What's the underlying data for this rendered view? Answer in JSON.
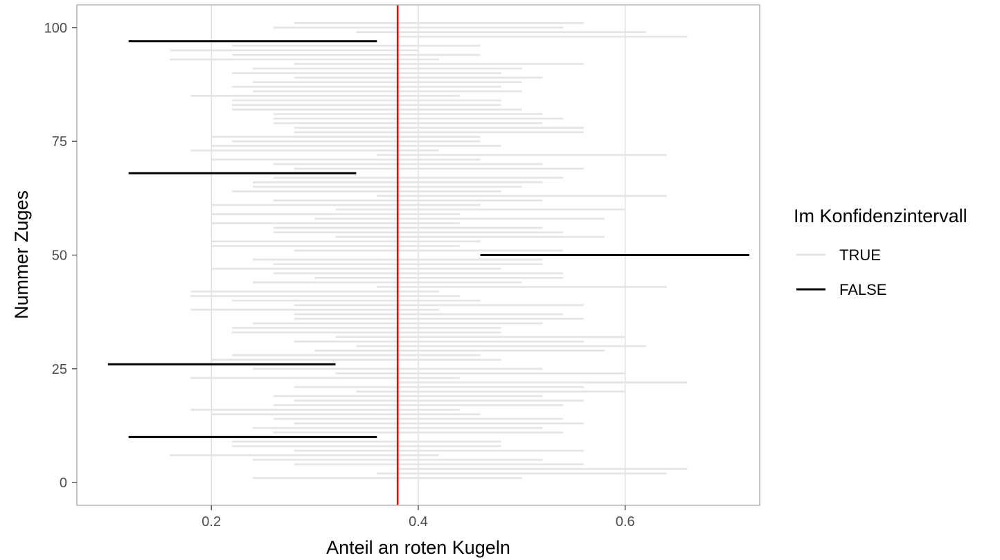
{
  "chart_data": {
    "type": "interval",
    "title": "",
    "xlabel": "Anteil an roten Kugeln",
    "ylabel": "Nummer Zuges",
    "xlim": [
      0.07,
      0.73
    ],
    "ylim": [
      -5,
      105
    ],
    "x_ticks": [
      0.2,
      0.4,
      0.6
    ],
    "x_tick_labels": [
      "0.2",
      "0.4",
      "0.6"
    ],
    "y_ticks": [
      0,
      25,
      50,
      75,
      100
    ],
    "y_tick_labels": [
      "0",
      "25",
      "50",
      "75",
      "100"
    ],
    "grid": true,
    "reference_line": {
      "x": 0.38,
      "color": "#ff0000"
    },
    "legend": {
      "title": "Im Konfidenzintervall",
      "position": "right",
      "entries": [
        {
          "label": "TRUE",
          "color": "#e5e5e5"
        },
        {
          "label": "FALSE",
          "color": "#000000"
        }
      ]
    },
    "intervals": [
      {
        "id": 1,
        "lo": 0.24,
        "hi": 0.5,
        "in_ci": true
      },
      {
        "id": 2,
        "lo": 0.36,
        "hi": 0.64,
        "in_ci": true
      },
      {
        "id": 3,
        "lo": 0.38,
        "hi": 0.66,
        "in_ci": true
      },
      {
        "id": 4,
        "lo": 0.28,
        "hi": 0.56,
        "in_ci": true
      },
      {
        "id": 5,
        "lo": 0.24,
        "hi": 0.52,
        "in_ci": true
      },
      {
        "id": 6,
        "lo": 0.16,
        "hi": 0.42,
        "in_ci": true
      },
      {
        "id": 7,
        "lo": 0.28,
        "hi": 0.56,
        "in_ci": true
      },
      {
        "id": 8,
        "lo": 0.22,
        "hi": 0.48,
        "in_ci": true
      },
      {
        "id": 9,
        "lo": 0.22,
        "hi": 0.48,
        "in_ci": true
      },
      {
        "id": 10,
        "lo": 0.12,
        "hi": 0.36,
        "in_ci": false
      },
      {
        "id": 11,
        "lo": 0.26,
        "hi": 0.54,
        "in_ci": true
      },
      {
        "id": 12,
        "lo": 0.24,
        "hi": 0.52,
        "in_ci": true
      },
      {
        "id": 13,
        "lo": 0.28,
        "hi": 0.56,
        "in_ci": true
      },
      {
        "id": 14,
        "lo": 0.26,
        "hi": 0.54,
        "in_ci": true
      },
      {
        "id": 15,
        "lo": 0.2,
        "hi": 0.46,
        "in_ci": true
      },
      {
        "id": 16,
        "lo": 0.18,
        "hi": 0.44,
        "in_ci": true
      },
      {
        "id": 17,
        "lo": 0.26,
        "hi": 0.54,
        "in_ci": true
      },
      {
        "id": 18,
        "lo": 0.28,
        "hi": 0.56,
        "in_ci": true
      },
      {
        "id": 19,
        "lo": 0.26,
        "hi": 0.52,
        "in_ci": true
      },
      {
        "id": 20,
        "lo": 0.34,
        "hi": 0.6,
        "in_ci": true
      },
      {
        "id": 21,
        "lo": 0.28,
        "hi": 0.56,
        "in_ci": true
      },
      {
        "id": 22,
        "lo": 0.38,
        "hi": 0.66,
        "in_ci": true
      },
      {
        "id": 23,
        "lo": 0.18,
        "hi": 0.44,
        "in_ci": true
      },
      {
        "id": 24,
        "lo": 0.32,
        "hi": 0.6,
        "in_ci": true
      },
      {
        "id": 25,
        "lo": 0.24,
        "hi": 0.52,
        "in_ci": true
      },
      {
        "id": 26,
        "lo": 0.1,
        "hi": 0.32,
        "in_ci": false
      },
      {
        "id": 27,
        "lo": 0.2,
        "hi": 0.48,
        "in_ci": true
      },
      {
        "id": 28,
        "lo": 0.22,
        "hi": 0.46,
        "in_ci": true
      },
      {
        "id": 29,
        "lo": 0.3,
        "hi": 0.58,
        "in_ci": true
      },
      {
        "id": 30,
        "lo": 0.34,
        "hi": 0.62,
        "in_ci": true
      },
      {
        "id": 31,
        "lo": 0.28,
        "hi": 0.56,
        "in_ci": true
      },
      {
        "id": 32,
        "lo": 0.32,
        "hi": 0.6,
        "in_ci": true
      },
      {
        "id": 33,
        "lo": 0.22,
        "hi": 0.48,
        "in_ci": true
      },
      {
        "id": 34,
        "lo": 0.22,
        "hi": 0.48,
        "in_ci": true
      },
      {
        "id": 35,
        "lo": 0.24,
        "hi": 0.52,
        "in_ci": true
      },
      {
        "id": 36,
        "lo": 0.28,
        "hi": 0.56,
        "in_ci": true
      },
      {
        "id": 37,
        "lo": 0.28,
        "hi": 0.54,
        "in_ci": true
      },
      {
        "id": 38,
        "lo": 0.18,
        "hi": 0.42,
        "in_ci": true
      },
      {
        "id": 39,
        "lo": 0.28,
        "hi": 0.56,
        "in_ci": true
      },
      {
        "id": 40,
        "lo": 0.22,
        "hi": 0.46,
        "in_ci": true
      },
      {
        "id": 41,
        "lo": 0.18,
        "hi": 0.44,
        "in_ci": true
      },
      {
        "id": 42,
        "lo": 0.18,
        "hi": 0.42,
        "in_ci": true
      },
      {
        "id": 43,
        "lo": 0.36,
        "hi": 0.64,
        "in_ci": true
      },
      {
        "id": 44,
        "lo": 0.24,
        "hi": 0.5,
        "in_ci": true
      },
      {
        "id": 45,
        "lo": 0.3,
        "hi": 0.54,
        "in_ci": true
      },
      {
        "id": 46,
        "lo": 0.26,
        "hi": 0.54,
        "in_ci": true
      },
      {
        "id": 47,
        "lo": 0.2,
        "hi": 0.48,
        "in_ci": true
      },
      {
        "id": 48,
        "lo": 0.26,
        "hi": 0.52,
        "in_ci": true
      },
      {
        "id": 49,
        "lo": 0.24,
        "hi": 0.52,
        "in_ci": true
      },
      {
        "id": 50,
        "lo": 0.46,
        "hi": 0.72,
        "in_ci": false
      },
      {
        "id": 51,
        "lo": 0.28,
        "hi": 0.54,
        "in_ci": true
      },
      {
        "id": 52,
        "lo": 0.2,
        "hi": 0.44,
        "in_ci": true
      },
      {
        "id": 53,
        "lo": 0.2,
        "hi": 0.46,
        "in_ci": true
      },
      {
        "id": 54,
        "lo": 0.32,
        "hi": 0.58,
        "in_ci": true
      },
      {
        "id": 55,
        "lo": 0.26,
        "hi": 0.54,
        "in_ci": true
      },
      {
        "id": 56,
        "lo": 0.26,
        "hi": 0.52,
        "in_ci": true
      },
      {
        "id": 57,
        "lo": 0.2,
        "hi": 0.44,
        "in_ci": true
      },
      {
        "id": 58,
        "lo": 0.3,
        "hi": 0.58,
        "in_ci": true
      },
      {
        "id": 59,
        "lo": 0.2,
        "hi": 0.44,
        "in_ci": true
      },
      {
        "id": 60,
        "lo": 0.32,
        "hi": 0.6,
        "in_ci": true
      },
      {
        "id": 61,
        "lo": 0.2,
        "hi": 0.46,
        "in_ci": true
      },
      {
        "id": 62,
        "lo": 0.26,
        "hi": 0.52,
        "in_ci": true
      },
      {
        "id": 63,
        "lo": 0.36,
        "hi": 0.64,
        "in_ci": true
      },
      {
        "id": 64,
        "lo": 0.22,
        "hi": 0.48,
        "in_ci": true
      },
      {
        "id": 65,
        "lo": 0.24,
        "hi": 0.5,
        "in_ci": true
      },
      {
        "id": 66,
        "lo": 0.24,
        "hi": 0.52,
        "in_ci": true
      },
      {
        "id": 67,
        "lo": 0.26,
        "hi": 0.54,
        "in_ci": true
      },
      {
        "id": 68,
        "lo": 0.12,
        "hi": 0.34,
        "in_ci": false
      },
      {
        "id": 69,
        "lo": 0.28,
        "hi": 0.56,
        "in_ci": true
      },
      {
        "id": 70,
        "lo": 0.26,
        "hi": 0.52,
        "in_ci": true
      },
      {
        "id": 71,
        "lo": 0.2,
        "hi": 0.46,
        "in_ci": true
      },
      {
        "id": 72,
        "lo": 0.36,
        "hi": 0.64,
        "in_ci": true
      },
      {
        "id": 73,
        "lo": 0.18,
        "hi": 0.42,
        "in_ci": true
      },
      {
        "id": 74,
        "lo": 0.2,
        "hi": 0.48,
        "in_ci": true
      },
      {
        "id": 75,
        "lo": 0.22,
        "hi": 0.46,
        "in_ci": true
      },
      {
        "id": 76,
        "lo": 0.2,
        "hi": 0.46,
        "in_ci": true
      },
      {
        "id": 77,
        "lo": 0.28,
        "hi": 0.56,
        "in_ci": true
      },
      {
        "id": 78,
        "lo": 0.28,
        "hi": 0.56,
        "in_ci": true
      },
      {
        "id": 79,
        "lo": 0.26,
        "hi": 0.52,
        "in_ci": true
      },
      {
        "id": 80,
        "lo": 0.26,
        "hi": 0.54,
        "in_ci": true
      },
      {
        "id": 81,
        "lo": 0.26,
        "hi": 0.52,
        "in_ci": true
      },
      {
        "id": 82,
        "lo": 0.22,
        "hi": 0.5,
        "in_ci": true
      },
      {
        "id": 83,
        "lo": 0.22,
        "hi": 0.48,
        "in_ci": true
      },
      {
        "id": 84,
        "lo": 0.22,
        "hi": 0.48,
        "in_ci": true
      },
      {
        "id": 85,
        "lo": 0.18,
        "hi": 0.44,
        "in_ci": true
      },
      {
        "id": 86,
        "lo": 0.24,
        "hi": 0.5,
        "in_ci": true
      },
      {
        "id": 87,
        "lo": 0.22,
        "hi": 0.48,
        "in_ci": true
      },
      {
        "id": 88,
        "lo": 0.24,
        "hi": 0.5,
        "in_ci": true
      },
      {
        "id": 89,
        "lo": 0.28,
        "hi": 0.52,
        "in_ci": true
      },
      {
        "id": 90,
        "lo": 0.22,
        "hi": 0.48,
        "in_ci": true
      },
      {
        "id": 91,
        "lo": 0.24,
        "hi": 0.5,
        "in_ci": true
      },
      {
        "id": 92,
        "lo": 0.28,
        "hi": 0.56,
        "in_ci": true
      },
      {
        "id": 93,
        "lo": 0.16,
        "hi": 0.42,
        "in_ci": true
      },
      {
        "id": 94,
        "lo": 0.22,
        "hi": 0.46,
        "in_ci": true
      },
      {
        "id": 95,
        "lo": 0.16,
        "hi": 0.4,
        "in_ci": true
      },
      {
        "id": 96,
        "lo": 0.22,
        "hi": 0.46,
        "in_ci": true
      },
      {
        "id": 97,
        "lo": 0.12,
        "hi": 0.36,
        "in_ci": false
      },
      {
        "id": 98,
        "lo": 0.38,
        "hi": 0.66,
        "in_ci": true
      },
      {
        "id": 99,
        "lo": 0.34,
        "hi": 0.62,
        "in_ci": true
      },
      {
        "id": 100,
        "lo": 0.26,
        "hi": 0.54,
        "in_ci": true
      },
      {
        "id": 101,
        "lo": 0.28,
        "hi": 0.56,
        "in_ci": true
      }
    ]
  }
}
